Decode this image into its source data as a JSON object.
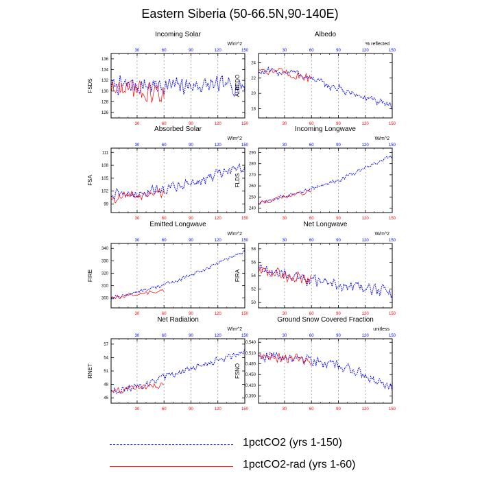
{
  "figure": {
    "title": "Eastern Siberia (50-66.5N,90-140E)",
    "colors": {
      "series1": "#0000ff",
      "series2": "#ff0000",
      "axis_text": "#000000"
    },
    "legend": [
      {
        "label": "1pctCO2 (yrs 1-150)",
        "style": "dashed",
        "color": "#0000ff"
      },
      {
        "label": "1pctCO2-rad (yrs 1-60)",
        "style": "solid",
        "color": "#ff0000"
      }
    ]
  },
  "chart_data": [
    {
      "type": "line",
      "title": "Incoming Solar",
      "ylabel": "FSDS",
      "units": "W/m^2",
      "xlim": [
        1,
        150
      ],
      "ylim": [
        125,
        137
      ],
      "yticks": [
        126,
        128,
        130,
        132,
        134,
        136
      ],
      "xticks": [
        30,
        60,
        90,
        120,
        150
      ],
      "series": [
        {
          "name": "1pctCO2 (yrs 1-150)",
          "trend": [
            [
              1,
              131
            ],
            [
              150,
              131
            ]
          ],
          "noise": 2.0
        },
        {
          "name": "1pctCO2-rad (yrs 1-60)",
          "trend": [
            [
              1,
              130.5
            ],
            [
              60,
              129.5
            ]
          ],
          "noise": 2.2
        }
      ]
    },
    {
      "type": "line",
      "title": "Albedo",
      "ylabel": "ALBEDO",
      "units": "% reflected",
      "xlim": [
        1,
        150
      ],
      "ylim": [
        16.8,
        25.2
      ],
      "yticks": [
        18.0,
        20.0,
        22.0,
        24.0
      ],
      "xticks": [
        30,
        60,
        90,
        120,
        150
      ],
      "series": [
        {
          "name": "1pctCO2 (yrs 1-150)",
          "trend": [
            [
              1,
              22.8
            ],
            [
              40,
              22.8
            ],
            [
              80,
              21.0
            ],
            [
              150,
              18.2
            ]
          ],
          "noise": 0.6
        },
        {
          "name": "1pctCO2-rad (yrs 1-60)",
          "trend": [
            [
              1,
              23.2
            ],
            [
              60,
              22.0
            ]
          ],
          "noise": 0.7
        }
      ]
    },
    {
      "type": "line",
      "title": "Absorbed Solar",
      "ylabel": "FSA",
      "units": "W/m^2",
      "xlim": [
        1,
        150
      ],
      "ylim": [
        97,
        112
      ],
      "yticks": [
        99,
        102,
        105,
        108,
        111
      ],
      "xticks": [
        30,
        60,
        90,
        120,
        150
      ],
      "series": [
        {
          "name": "1pctCO2 (yrs 1-150)",
          "trend": [
            [
              1,
              101
            ],
            [
              40,
              101.5
            ],
            [
              90,
              104
            ],
            [
              150,
              107.5
            ]
          ],
          "noise": 1.6
        },
        {
          "name": "1pctCO2-rad (yrs 1-60)",
          "trend": [
            [
              1,
              100.5
            ],
            [
              60,
              101.5
            ]
          ],
          "noise": 1.5
        }
      ]
    },
    {
      "type": "line",
      "title": "Incoming Longwave",
      "ylabel": "FLDS",
      "units": "W/m^2",
      "xlim": [
        1,
        150
      ],
      "ylim": [
        236,
        294
      ],
      "yticks": [
        240,
        250,
        260,
        270,
        280,
        290
      ],
      "xticks": [
        30,
        60,
        90,
        120,
        150
      ],
      "series": [
        {
          "name": "1pctCO2 (yrs 1-150)",
          "trend": [
            [
              1,
              244
            ],
            [
              40,
              253
            ],
            [
              90,
              265
            ],
            [
              150,
              287
            ]
          ],
          "noise": 2.0
        },
        {
          "name": "1pctCO2-rad (yrs 1-60)",
          "trend": [
            [
              1,
              245
            ],
            [
              60,
              255
            ]
          ],
          "noise": 2.2
        }
      ]
    },
    {
      "type": "line",
      "title": "Emitted Longwave",
      "ylabel": "FIRE",
      "units": "W/m^2",
      "xlim": [
        1,
        150
      ],
      "ylim": [
        292,
        344
      ],
      "yticks": [
        300,
        310,
        320,
        330,
        340
      ],
      "xticks": [
        30,
        60,
        90,
        120,
        150
      ],
      "series": [
        {
          "name": "1pctCO2 (yrs 1-150)",
          "trend": [
            [
              1,
              300
            ],
            [
              40,
              306
            ],
            [
              90,
              318
            ],
            [
              150,
              338
            ]
          ],
          "noise": 1.8
        },
        {
          "name": "1pctCO2-rad (yrs 1-60)",
          "trend": [
            [
              1,
              300
            ],
            [
              60,
              306
            ]
          ],
          "noise": 1.8
        }
      ]
    },
    {
      "type": "line",
      "title": "Net Longwave",
      "ylabel": "FIRA",
      "units": "W/m^2",
      "xlim": [
        1,
        150
      ],
      "ylim": [
        49.2,
        58.8
      ],
      "yticks": [
        50.0,
        52.0,
        54.0,
        56.0,
        58.0
      ],
      "xticks": [
        30,
        60,
        90,
        120,
        150
      ],
      "series": [
        {
          "name": "1pctCO2 (yrs 1-150)",
          "trend": [
            [
              1,
              55
            ],
            [
              40,
              53.8
            ],
            [
              90,
              52.6
            ],
            [
              150,
              51.6
            ]
          ],
          "noise": 1.1
        },
        {
          "name": "1pctCO2-rad (yrs 1-60)",
          "trend": [
            [
              1,
              54.6
            ],
            [
              60,
              53.2
            ]
          ],
          "noise": 1.2
        }
      ]
    },
    {
      "type": "line",
      "title": "Net Radiation",
      "ylabel": "RNET",
      "units": "W/m^2",
      "xlim": [
        1,
        150
      ],
      "ylim": [
        43.8,
        58.2
      ],
      "yticks": [
        45.0,
        48.0,
        51.0,
        54.0,
        57.0
      ],
      "xticks": [
        30,
        60,
        90,
        120,
        150
      ],
      "series": [
        {
          "name": "1pctCO2 (yrs 1-150)",
          "trend": [
            [
              1,
              46.5
            ],
            [
              40,
              48
            ],
            [
              90,
              51.5
            ],
            [
              150,
              55.5
            ]
          ],
          "noise": 1.0
        },
        {
          "name": "1pctCO2-rad (yrs 1-60)",
          "trend": [
            [
              1,
              46.5
            ],
            [
              60,
              48
            ]
          ],
          "noise": 1.0
        }
      ]
    },
    {
      "type": "line",
      "title": "Ground Snow Covered Fraction",
      "ylabel": "FSNO",
      "units": "unitless",
      "xlim": [
        1,
        150
      ],
      "ylim": [
        0.37,
        0.55
      ],
      "yticks": [
        0.39,
        0.42,
        0.45,
        0.48,
        0.51,
        0.54
      ],
      "xticks": [
        30,
        60,
        90,
        120,
        150
      ],
      "series": [
        {
          "name": "1pctCO2 (yrs 1-150)",
          "trend": [
            [
              1,
              0.502
            ],
            [
              50,
              0.498
            ],
            [
              100,
              0.468
            ],
            [
              150,
              0.418
            ]
          ],
          "noise": 0.018
        },
        {
          "name": "1pctCO2-rad (yrs 1-60)",
          "trend": [
            [
              1,
              0.505
            ],
            [
              60,
              0.49
            ]
          ],
          "noise": 0.018
        }
      ]
    }
  ]
}
